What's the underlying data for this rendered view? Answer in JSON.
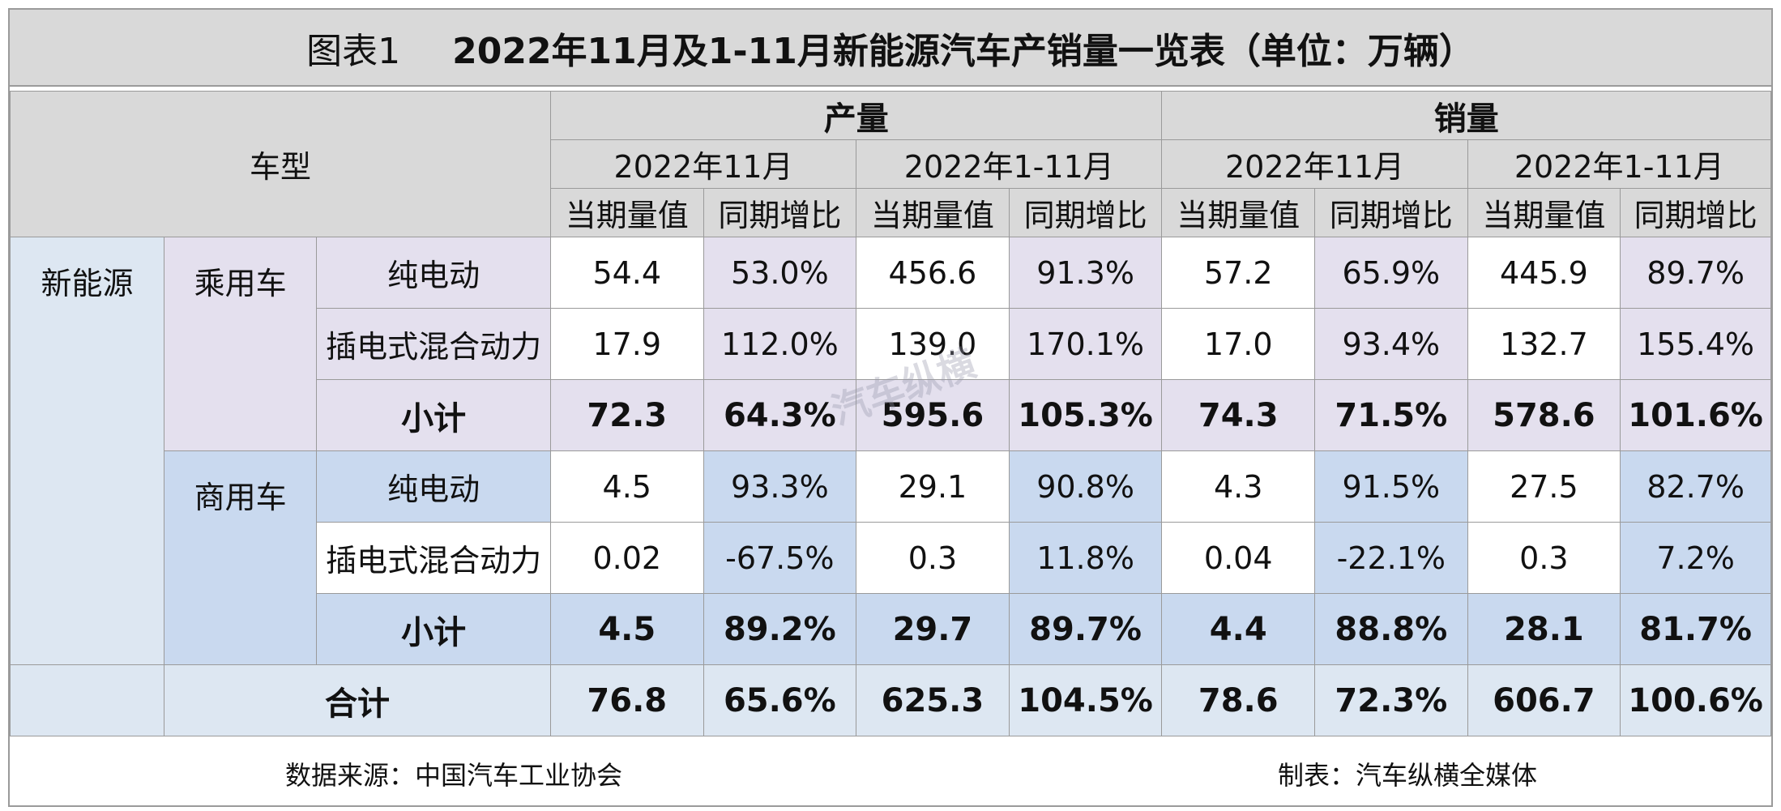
{
  "title": {
    "figure": "图表1",
    "text": "2022年11月及1-11月新能源汽车产销量一览表（单位：万辆）"
  },
  "header": {
    "vehicle_type": "车型",
    "groups": [
      "产量",
      "销量"
    ],
    "periods": [
      "2022年11月",
      "2022年1-11月",
      "2022年11月",
      "2022年1-11月"
    ],
    "metrics": [
      "当期量值",
      "同期增比",
      "当期量值",
      "同期增比",
      "当期量值",
      "同期增比",
      "当期量值",
      "同期增比"
    ]
  },
  "category": "新能源",
  "sections": [
    {
      "name": "乘用车",
      "rows": [
        {
          "label": "纯电动",
          "values": [
            "54.4",
            "53.0%",
            "456.6",
            "91.3%",
            "57.2",
            "65.9%",
            "445.9",
            "89.7%"
          ]
        },
        {
          "label": "插电式混合动力",
          "values": [
            "17.9",
            "112.0%",
            "139.0",
            "170.1%",
            "17.0",
            "93.4%",
            "132.7",
            "155.4%"
          ]
        },
        {
          "label": "小计",
          "values": [
            "72.3",
            "64.3%",
            "595.6",
            "105.3%",
            "74.3",
            "71.5%",
            "578.6",
            "101.6%"
          ]
        }
      ]
    },
    {
      "name": "商用车",
      "rows": [
        {
          "label": "纯电动",
          "values": [
            "4.5",
            "93.3%",
            "29.1",
            "90.8%",
            "4.3",
            "91.5%",
            "27.5",
            "82.7%"
          ]
        },
        {
          "label": "插电式混合动力",
          "values": [
            "0.02",
            "-67.5%",
            "0.3",
            "11.8%",
            "0.04",
            "-22.1%",
            "0.3",
            "7.2%"
          ]
        },
        {
          "label": "小计",
          "values": [
            "4.5",
            "89.2%",
            "29.7",
            "89.7%",
            "4.4",
            "88.8%",
            "28.1",
            "81.7%"
          ]
        }
      ]
    }
  ],
  "total": {
    "label": "合计",
    "values": [
      "76.8",
      "65.6%",
      "625.3",
      "104.5%",
      "78.6",
      "72.3%",
      "606.7",
      "100.6%"
    ]
  },
  "footer": {
    "source": "数据来源：中国汽车工业协会",
    "maker": "制表：汽车纵横全媒体"
  },
  "watermark": "汽车纵横",
  "colors": {
    "header_gray": "#d9d9d9",
    "passenger_lavender": "#e4e0ee",
    "commercial_blue": "#c9d9ef",
    "category_pale": "#dde7f2"
  }
}
